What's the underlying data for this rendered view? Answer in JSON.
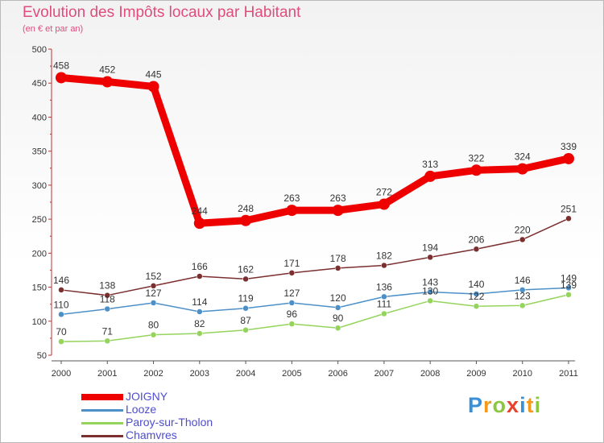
{
  "chart_data": {
    "type": "line",
    "title": "Evolution des Impôts locaux par Habitant",
    "subtitle": "(en € et par an)",
    "xlabel": "",
    "ylabel": "",
    "ylim": [
      50,
      500
    ],
    "yticks": [
      50,
      100,
      150,
      200,
      250,
      300,
      350,
      400,
      450,
      500
    ],
    "grid": false,
    "legend_position": "bottom-left",
    "categories": [
      "2000",
      "2001",
      "2002",
      "2003",
      "2004",
      "2005",
      "2006",
      "2007",
      "2008",
      "2009",
      "2010",
      "2011"
    ],
    "series": [
      {
        "name": "JOIGNY",
        "color": "#ee0000",
        "values": [
          458,
          452,
          445,
          244,
          248,
          263,
          263,
          272,
          313,
          322,
          324,
          339
        ]
      },
      {
        "name": "Looze",
        "color": "#4d90c8",
        "values": [
          110,
          118,
          127,
          114,
          119,
          127,
          120,
          136,
          143,
          140,
          146,
          149
        ]
      },
      {
        "name": "Paroy-sur-Tholon",
        "color": "#95d45c",
        "values": [
          70,
          71,
          80,
          82,
          87,
          96,
          90,
          111,
          130,
          122,
          123,
          139
        ]
      },
      {
        "name": "Chamvres",
        "color": "#7b2f2f",
        "values": [
          146,
          138,
          152,
          166,
          162,
          171,
          178,
          182,
          194,
          206,
          220,
          251
        ]
      }
    ]
  },
  "logo": {
    "letters": [
      "P",
      "r",
      "o",
      "x",
      "i",
      "t",
      "i"
    ],
    "colors": [
      "#3a8fd6",
      "#f39a1c",
      "#8dc63f",
      "#e8412c",
      "#3a8fd6",
      "#f39a1c",
      "#8dc63f"
    ]
  }
}
